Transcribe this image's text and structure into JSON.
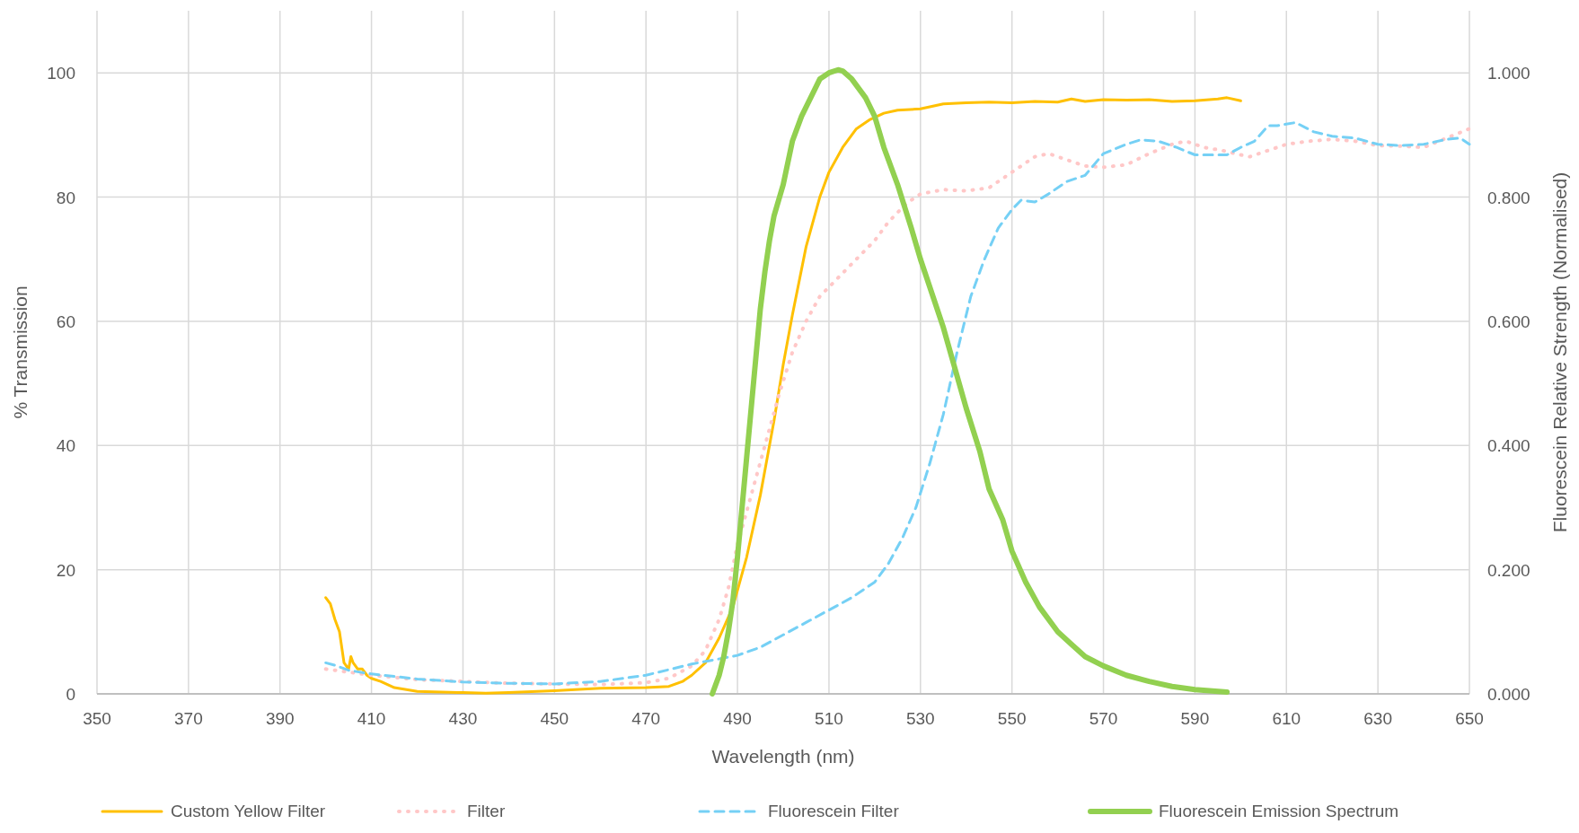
{
  "chart_data": {
    "type": "line",
    "xlabel": "Wavelength (nm)",
    "ylabel": "% Transmission",
    "y2label": "Fluorescein Relative Strength (Normalised)",
    "xlim": [
      350,
      650
    ],
    "xticks": [
      350,
      370,
      390,
      410,
      430,
      450,
      470,
      490,
      510,
      530,
      550,
      570,
      590,
      610,
      630,
      650
    ],
    "ylim": [
      0,
      110
    ],
    "yticks": [
      0,
      20,
      40,
      60,
      80,
      100
    ],
    "y2lim": [
      0,
      1.1
    ],
    "y2ticks": [
      {
        "value": 0,
        "label": "0.000"
      },
      {
        "value": 0.2,
        "label": "0.200"
      },
      {
        "value": 0.4,
        "label": "0.400"
      },
      {
        "value": 0.6,
        "label": "0.600"
      },
      {
        "value": 0.8,
        "label": "0.800"
      },
      {
        "value": 1,
        "label": "1.000"
      }
    ],
    "grid": true,
    "legend": "bottom",
    "series": [
      {
        "name": "Custom Yellow Filter",
        "color": "#ffc000",
        "line_style": "solid",
        "x": [
          400,
          401,
          402,
          403,
          404,
          405,
          405.5,
          406,
          407,
          408,
          409,
          410,
          412,
          415,
          420,
          430,
          435,
          440,
          450,
          460,
          470,
          475,
          478,
          480,
          483,
          486,
          489,
          492,
          495,
          498,
          500,
          502,
          505,
          508,
          510,
          513,
          516,
          519,
          522,
          525,
          530,
          535,
          540,
          545,
          550,
          555,
          560,
          563,
          566,
          570,
          575,
          580,
          585,
          590,
          595,
          597,
          600
        ],
        "values": [
          15.5,
          14.5,
          12,
          10,
          5,
          4,
          6,
          5,
          4,
          4,
          3,
          2.5,
          2,
          1,
          0.4,
          0.2,
          0.1,
          0.2,
          0.5,
          0.9,
          1,
          1.2,
          2,
          3,
          5,
          9,
          14,
          22,
          32,
          44,
          53,
          61,
          72,
          80,
          84,
          88,
          91,
          92.5,
          93.5,
          94,
          94.2,
          95,
          95.2,
          95.3,
          95.2,
          95.4,
          95.3,
          95.8,
          95.4,
          95.7,
          95.6,
          95.7,
          95.4,
          95.5,
          95.8,
          96,
          95.5
        ]
      },
      {
        "name": "Filter",
        "color": "#ffc7c7",
        "line_style": "dotted",
        "x": [
          400,
          405,
          410,
          420,
          430,
          440,
          450,
          460,
          470,
          475,
          480,
          483,
          486,
          488,
          490,
          493,
          496,
          499,
          502,
          505,
          508,
          512,
          516,
          520,
          523,
          527,
          530,
          535,
          540,
          545,
          550,
          555,
          558,
          562,
          566,
          570,
          575,
          580,
          585,
          588,
          592,
          596,
          600,
          602,
          606,
          610,
          615,
          620,
          625,
          630,
          635,
          640,
          645,
          650
        ],
        "values": [
          4,
          3.5,
          3,
          2.3,
          2,
          1.7,
          1.6,
          1.5,
          1.8,
          2.5,
          4.5,
          7,
          12,
          17,
          24,
          32,
          40,
          48,
          55,
          60,
          64,
          67,
          70,
          73,
          76,
          79,
          80.5,
          81.2,
          81,
          81.5,
          84,
          86.5,
          87,
          86,
          85,
          84.8,
          85.2,
          87,
          88.5,
          89,
          88,
          87.5,
          86.8,
          86.5,
          87.5,
          88.5,
          89,
          89.3,
          89,
          88.3,
          88.2,
          88,
          89.5,
          91
        ]
      },
      {
        "name": "Fluorescein Filter",
        "color": "#75d0f5",
        "line_style": "dashed",
        "x": [
          400,
          402,
          405,
          410,
          420,
          430,
          440,
          450,
          460,
          470,
          480,
          490,
          495,
          500,
          505,
          510,
          515,
          520,
          523,
          526,
          529,
          532,
          535,
          538,
          541,
          544,
          547,
          550,
          552,
          555,
          558,
          562,
          566,
          570,
          575,
          578,
          582,
          586,
          590,
          594,
          597,
          600,
          603,
          606,
          608,
          612,
          616,
          620,
          625,
          630,
          635,
          640,
          645,
          648,
          650
        ],
        "values": [
          5,
          4.6,
          3.8,
          3.2,
          2.4,
          1.9,
          1.7,
          1.6,
          2,
          3,
          4.8,
          6.2,
          7.5,
          9.5,
          11.5,
          13.5,
          15.5,
          18,
          21,
          25,
          30,
          37,
          45,
          55,
          64,
          70,
          75,
          78,
          79.5,
          79.2,
          80.5,
          82.5,
          83.5,
          87,
          88.5,
          89.2,
          89,
          88,
          86.8,
          86.8,
          86.8,
          88,
          89,
          91.5,
          91.5,
          92,
          90.5,
          89.8,
          89.5,
          88.5,
          88.3,
          88.5,
          89.3,
          89.5,
          88.5
        ]
      },
      {
        "name": "Fluorescein Emission Spectrum",
        "color": "#92d050",
        "line_style": "solid",
        "axis": "y2",
        "x": [
          484.5,
          486,
          487,
          488,
          489,
          490,
          491,
          492,
          493,
          494,
          495,
          496,
          497,
          498,
          500,
          502,
          504,
          506,
          508,
          510,
          512,
          513,
          515,
          518,
          520,
          522,
          525,
          528,
          530,
          535,
          540,
          543,
          545,
          548,
          550,
          553,
          556,
          560,
          563,
          566,
          570,
          575,
          580,
          585,
          590,
          597
        ],
        "values": [
          0,
          0.03,
          0.06,
          0.1,
          0.15,
          0.22,
          0.3,
          0.38,
          0.46,
          0.54,
          0.62,
          0.68,
          0.73,
          0.77,
          0.82,
          0.89,
          0.93,
          0.96,
          0.99,
          1.0,
          1.005,
          1.003,
          0.99,
          0.96,
          0.93,
          0.88,
          0.82,
          0.75,
          0.7,
          0.59,
          0.46,
          0.39,
          0.33,
          0.28,
          0.23,
          0.18,
          0.14,
          0.1,
          0.08,
          0.06,
          0.045,
          0.03,
          0.02,
          0.012,
          0.007,
          0.003
        ]
      }
    ]
  }
}
